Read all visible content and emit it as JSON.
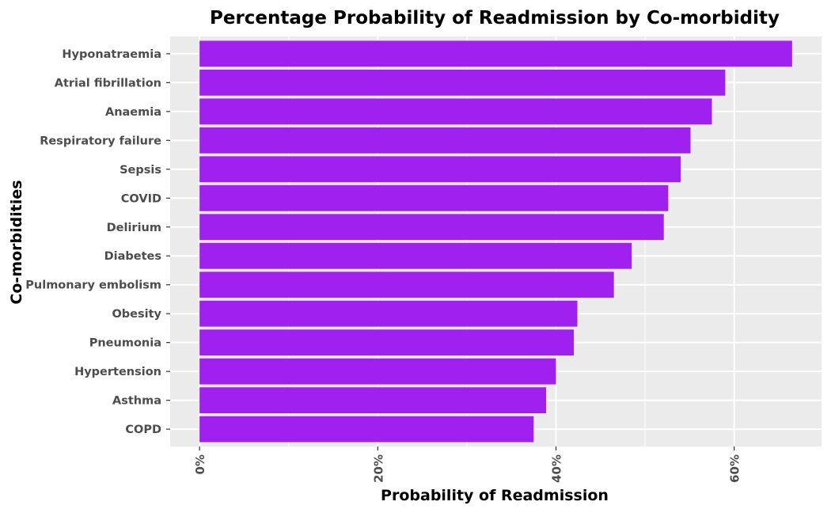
{
  "chart_data": {
    "type": "bar",
    "orientation": "horizontal",
    "title": "Percentage Probability of Readmission by Co-morbidity",
    "xlabel": "Probability of Readmission",
    "ylabel": "Co-morbidities",
    "categories": [
      "Hyponatraemia",
      "Atrial fibrillation",
      "Anaemia",
      "Respiratory failure",
      "Sepsis",
      "COVID",
      "Delirium",
      "Diabetes",
      "Pulmonary embolism",
      "Obesity",
      "Pneumonia",
      "Hypertension",
      "Asthma",
      "COPD"
    ],
    "values": [
      0.665,
      0.59,
      0.575,
      0.551,
      0.54,
      0.526,
      0.521,
      0.485,
      0.465,
      0.424,
      0.42,
      0.4,
      0.389,
      0.375
    ],
    "xlim": [
      -0.033,
      0.698
    ],
    "ticks": [
      0,
      0.2,
      0.4,
      0.6
    ],
    "tick_labels": [
      "0%",
      "20%",
      "40%",
      "60%"
    ],
    "grid": true,
    "colors": {
      "bar": "#a020f0",
      "panel": "#ebebeb",
      "grid": "#ffffff"
    }
  }
}
